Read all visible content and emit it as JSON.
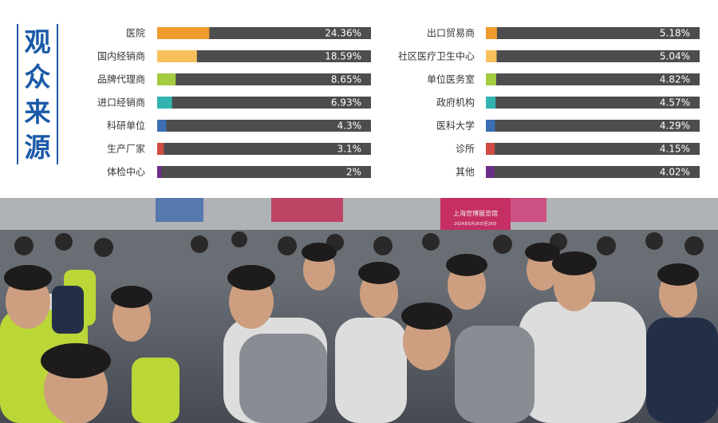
{
  "title_chars": [
    "观",
    "众",
    "来",
    "源"
  ],
  "chart_data": [
    {
      "type": "bar",
      "orientation": "horizontal",
      "title": "观众来源",
      "categories": [
        "医院",
        "国内经销商",
        "品牌代理商",
        "进口经销商",
        "科研单位",
        "生产厂家",
        "体检中心"
      ],
      "values": [
        24.36,
        18.59,
        8.65,
        6.93,
        4.3,
        3.1,
        2
      ],
      "value_labels": [
        "24.36%",
        "18.59%",
        "8.65%",
        "6.93%",
        "4.3%",
        "3.1%",
        "2%"
      ],
      "colors": [
        "#ef9a2d",
        "#f8c05c",
        "#a4cc40",
        "#33b3b0",
        "#3b6fb2",
        "#cf4b43",
        "#6c2d86"
      ],
      "track_color": "#4d4d4d",
      "xlim": [
        0,
        100
      ]
    },
    {
      "type": "bar",
      "orientation": "horizontal",
      "title": "",
      "categories": [
        "出口贸易商",
        "社区医疗卫生中心",
        "单位医务室",
        "政府机构",
        "医科大学",
        "诊所",
        "其他"
      ],
      "values": [
        5.18,
        5.04,
        4.82,
        4.57,
        4.29,
        4.15,
        4.02
      ],
      "value_labels": [
        "5.18%",
        "5.04%",
        "4.82%",
        "4.57%",
        "4.29%",
        "4.15%",
        "4.02%"
      ],
      "colors": [
        "#ef9a2d",
        "#f8c05c",
        "#a4cc40",
        "#33b3b0",
        "#3b6fb2",
        "#cf4b43",
        "#6c2d86"
      ],
      "track_color": "#4d4d4d",
      "xlim": [
        0,
        100
      ]
    }
  ],
  "photo": {
    "signs": [
      "上海世博展览馆",
      "2024年6月26日至28日"
    ]
  }
}
